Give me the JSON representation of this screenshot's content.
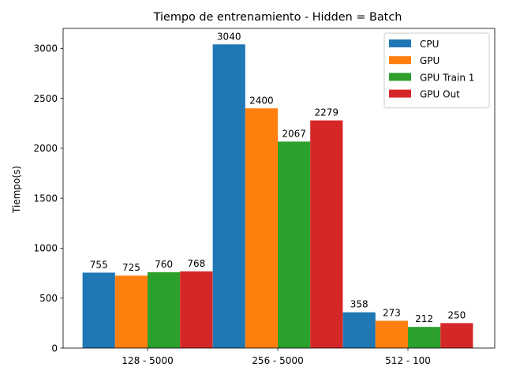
{
  "chart_data": {
    "type": "bar",
    "title": "Tiempo de entrenamiento - Hidden = Batch",
    "xlabel": "",
    "ylabel": "Tiempo(s)",
    "ylim": [
      0,
      3200
    ],
    "yticks": [
      0,
      500,
      1000,
      1500,
      2000,
      2500,
      3000
    ],
    "categories": [
      "128 - 5000",
      "256 - 5000",
      "512 - 100"
    ],
    "series": [
      {
        "name": "CPU",
        "color": "#1f77b4",
        "values": [
          755,
          3040,
          358
        ]
      },
      {
        "name": "GPU",
        "color": "#ff7f0e",
        "values": [
          725,
          2400,
          273
        ]
      },
      {
        "name": "GPU Train 1",
        "color": "#2ca02c",
        "values": [
          760,
          2067,
          212
        ]
      },
      {
        "name": "GPU Out",
        "color": "#d62728",
        "values": [
          768,
          2279,
          250
        ]
      }
    ],
    "grid": false,
    "legend_position": "top-right",
    "data_labels": true
  }
}
